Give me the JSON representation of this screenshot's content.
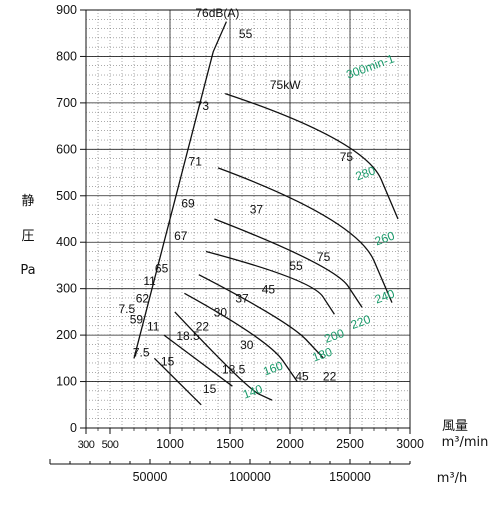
{
  "colors": {
    "line": "#111111",
    "grid": "#555555",
    "rpm_label": "#1a9a6a"
  },
  "chart_data": {
    "type": "line",
    "title": "",
    "ylabel": [
      "静",
      "圧",
      "Pa"
    ],
    "xlabel": [
      "風量",
      "m³/min",
      "m³/h"
    ],
    "ylim": [
      0,
      900
    ],
    "xlim": [
      300,
      3000
    ],
    "grid": true,
    "x_ticks": [
      "300",
      "500",
      "1000",
      "1500",
      "2000",
      "2500",
      "3000"
    ],
    "y_ticks": [
      "0",
      "100",
      "200",
      "300",
      "400",
      "500",
      "600",
      "700",
      "800",
      "900"
    ],
    "x2_ticks": [
      "50000",
      "100000",
      "150000"
    ],
    "speed_curves": [
      {
        "label": "140",
        "points": [
          [
            870,
            150
          ],
          [
            1260,
            50
          ]
        ]
      },
      {
        "label": "160",
        "points": [
          [
            950,
            200
          ],
          [
            1520,
            90
          ]
        ]
      },
      {
        "label": "180",
        "points": [
          [
            1040,
            250
          ],
          [
            1640,
            85
          ],
          [
            1850,
            60
          ]
        ]
      },
      {
        "label": "200",
        "points": [
          [
            1120,
            290
          ],
          [
            1820,
            190
          ],
          [
            2060,
            100
          ]
        ]
      },
      {
        "label": "220",
        "points": [
          [
            1240,
            330
          ],
          [
            1990,
            230
          ],
          [
            2280,
            150
          ]
        ]
      },
      {
        "label": "240",
        "points": [
          [
            1300,
            380
          ],
          [
            2180,
            320
          ],
          [
            2370,
            245
          ]
        ]
      },
      {
        "label": "260",
        "points": [
          [
            1370,
            450
          ],
          [
            2370,
            350
          ],
          [
            2600,
            260
          ]
        ]
      },
      {
        "label": "280",
        "points": [
          [
            1400,
            560
          ],
          [
            2550,
            450
          ],
          [
            2850,
            270
          ]
        ]
      },
      {
        "label": "300min-1",
        "points": [
          [
            1460,
            720
          ],
          [
            2620,
            620
          ],
          [
            2900,
            450
          ]
        ]
      }
    ],
    "noise_labels": [
      "76dB(A)",
      "73",
      "71",
      "69",
      "67",
      "65",
      "62",
      "59"
    ],
    "power_labels": [
      "7.5",
      "11",
      "15",
      "18.5",
      "22",
      "30",
      "37",
      "45",
      "55",
      "75",
      "75kW"
    ],
    "rpm_labels": [
      "300min-1",
      "280",
      "260",
      "240",
      "220",
      "200",
      "180",
      "160",
      "140"
    ]
  }
}
